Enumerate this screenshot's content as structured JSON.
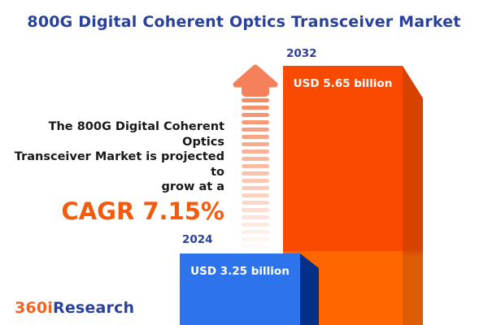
{
  "title": "800G Digital Coherent Optics Transceiver Market",
  "intro": {
    "lines": [
      "The 800G Digital Coherent Optics",
      "Transceiver Market is projected to",
      "grow at a"
    ],
    "cagr_label": "CAGR 7.15%"
  },
  "chart_data": {
    "type": "bar",
    "title": "800G Digital Coherent Optics Transceiver Market",
    "unit": "USD billion",
    "categories": [
      "2024",
      "2032"
    ],
    "values": [
      3.25,
      5.65
    ],
    "value_labels": [
      "USD 3.25 billion",
      "USD 5.65 billion"
    ],
    "cagr_percent": 7.15,
    "bar_colors": [
      "#2D73EB",
      "#FA4A02"
    ],
    "bar_side_colors": [
      "#04308A",
      "#D84200"
    ],
    "legend_position": "none",
    "axes": "none",
    "style": "3d-infographic-columns"
  },
  "icons": {
    "growth_arrow": "striped-up-arrow"
  },
  "logo": {
    "prefix": "360i",
    "suffix": "Research"
  },
  "colors": {
    "title_blue": "#2A419B",
    "accent_orange": "#F25B0D",
    "text_dark": "#191919",
    "arrow_salmon": "#F5815A",
    "background": "#FFFFFF"
  }
}
